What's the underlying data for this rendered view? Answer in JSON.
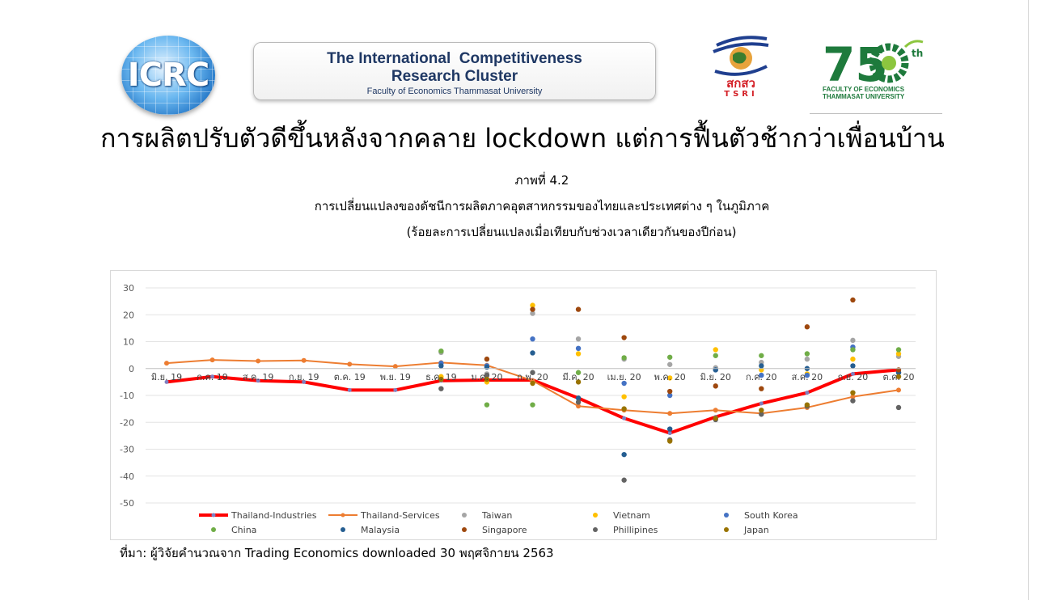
{
  "header": {
    "logo_icrc_text": "ICRC",
    "banner_line1": "The International  Competitiveness",
    "banner_line2": "Research Cluster",
    "banner_line3": "Faculty of Economics Thammasat University",
    "tsri_thai": "สกสว",
    "tsri_en": "TSRI",
    "eco_number": "75",
    "eco_suffix": "th",
    "eco_line1": "FACULTY OF ECONOMICS",
    "eco_line2": "THAMMASAT UNIVERSITY"
  },
  "headline": "การผลิตปรับตัวดีขึ้นหลังจากคลาย lockdown แต่การฟื้นตัวช้ากว่าเพื่อนบ้าน",
  "figure": {
    "label": "ภาพที่ 4.2",
    "title": "การเปลี่ยนแปลงของดัชนีการผลิตภาคอุตสาหกรรมของไทยและประเทศต่าง ๆ ในภูมิภาค",
    "subtitle": "(ร้อยละการเปลี่ยนแปลงเมื่อเทียบกับช่วงเวลาเดียวกันของปีก่อน)"
  },
  "source": "ที่มา: ผู้วิจัยคำนวณจาก Trading Economics downloaded 30 พฤศจิกายน 2563",
  "chart_data": {
    "type": "line",
    "ylim": [
      -50,
      30
    ],
    "yticks": [
      30,
      20,
      10,
      0,
      -10,
      -20,
      -30,
      -40,
      -50
    ],
    "grid": true,
    "legend": "bottom",
    "categories": [
      "มิ.ย. 19",
      "ก.ค. 19",
      "ส.ค. 19",
      "ก.ย. 19",
      "ต.ค. 19",
      "พ.ย. 19",
      "ธ.ค. 19",
      "ม.ค. 20",
      "ก.พ. 20",
      "มี.ค. 20",
      "เม.ย. 20",
      "พ.ค. 20",
      "มิ.ย. 20",
      "ก.ค. 20",
      "ส.ค. 20",
      "ก.ย. 20",
      "ต.ค. 20"
    ],
    "series": [
      {
        "name": "Thailand-Industries",
        "kind": "line-bold",
        "color": "#ff0000",
        "values": [
          -5,
          -3,
          -4.5,
          -5,
          -8,
          -8,
          -4.5,
          -4.3,
          -4.3,
          -11,
          -18.5,
          -24,
          -18,
          -13,
          -9,
          -2,
          -0.5
        ]
      },
      {
        "name": "Thailand-Services",
        "kind": "line",
        "color": "#ed7d31",
        "values": [
          2,
          3.2,
          2.8,
          3,
          1.6,
          0.8,
          2.2,
          1.2,
          -4.5,
          -14,
          -15.5,
          -16.7,
          -15.5,
          -16.7,
          -14.5,
          -10.5,
          -8
        ]
      },
      {
        "name": "Taiwan",
        "kind": "dot",
        "color": "#a5a5a5",
        "values": [
          null,
          null,
          null,
          null,
          null,
          null,
          6,
          -2,
          20.5,
          11,
          3.5,
          1.5,
          0.3,
          2.3,
          3.5,
          10.5,
          4.5
        ]
      },
      {
        "name": "Vietnam",
        "kind": "dot",
        "color": "#ffc000",
        "values": [
          null,
          null,
          null,
          null,
          null,
          null,
          -3,
          -5,
          23.5,
          5.5,
          -10.5,
          -3.5,
          7,
          -0.5,
          -2,
          3.5,
          5.5
        ]
      },
      {
        "name": "South Korea",
        "kind": "dot",
        "color": "#4472c4",
        "values": [
          null,
          null,
          null,
          null,
          null,
          null,
          2,
          1,
          11,
          7.5,
          -5.5,
          -10,
          -0.5,
          -2.5,
          -2.5,
          8,
          -1.5
        ]
      },
      {
        "name": "China",
        "kind": "dot",
        "color": "#70ad47",
        "values": [
          null,
          null,
          null,
          null,
          null,
          null,
          6.5,
          -13.5,
          -13.5,
          -1.5,
          4,
          4.2,
          4.8,
          4.8,
          5.5,
          7,
          7
        ]
      },
      {
        "name": "Malaysia",
        "kind": "dot",
        "color": "#255e91",
        "values": [
          null,
          null,
          null,
          null,
          null,
          null,
          1,
          0.5,
          5.8,
          -11,
          -32,
          -22.5,
          -0.5,
          1,
          0,
          1,
          -1.5
        ]
      },
      {
        "name": "Singapore",
        "kind": "dot",
        "color": "#9e480e",
        "values": [
          null,
          null,
          null,
          null,
          null,
          null,
          null,
          3.5,
          22,
          22,
          11.5,
          -8.5,
          -6.5,
          -7.5,
          15.5,
          25.5,
          -0.5
        ]
      },
      {
        "name": "Phillipines",
        "kind": "dot",
        "color": "#636363",
        "values": [
          null,
          null,
          null,
          null,
          null,
          null,
          -7.5,
          -2.5,
          -1.5,
          -12.5,
          -41.5,
          -26.5,
          -19,
          -17,
          -14,
          -12,
          -14.5
        ]
      },
      {
        "name": "Japan",
        "kind": "dot",
        "color": "#997300",
        "values": [
          null,
          null,
          null,
          null,
          null,
          null,
          -4,
          -4,
          -5.5,
          -5,
          -15,
          -27,
          -18.5,
          -15.5,
          -13.5,
          -9,
          -3
        ]
      }
    ]
  }
}
